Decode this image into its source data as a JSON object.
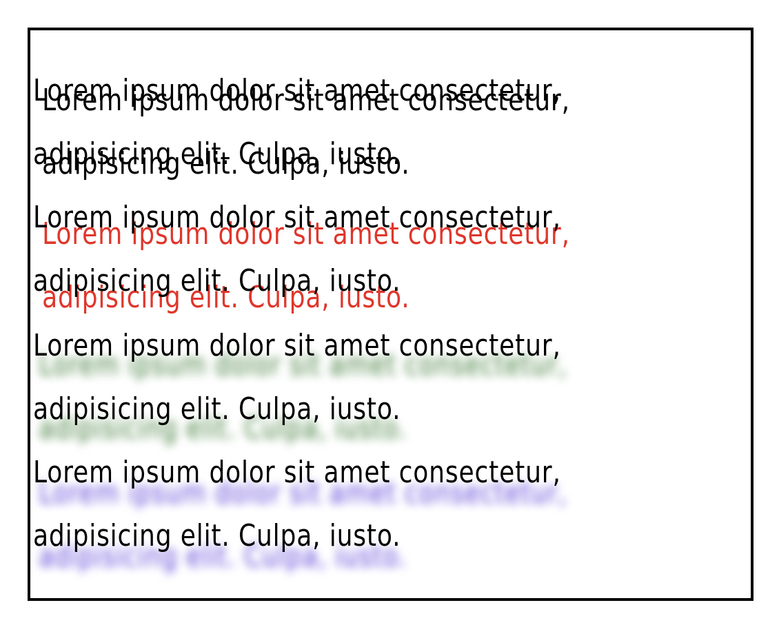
{
  "blocks": [
    {
      "line1": "Lorem ipsum dolor sit amet consectetur,",
      "line2": "adipisicing elit. Culpa, iusto.",
      "shadow": "#000000"
    },
    {
      "line1": "Lorem ipsum dolor sit amet consectetur,",
      "line2": "adipisicing elit. Culpa, iusto.",
      "shadow": "#e0362b"
    },
    {
      "line1": "Lorem ipsum dolor sit amet consectetur,",
      "line2": "adipisicing elit. Culpa, iusto.",
      "shadow": "#3d7a35"
    },
    {
      "line1": "Lorem ipsum dolor sit amet consectetur,",
      "line2": "adipisicing elit. Culpa, iusto.",
      "shadow": "#5a3fd6"
    }
  ]
}
